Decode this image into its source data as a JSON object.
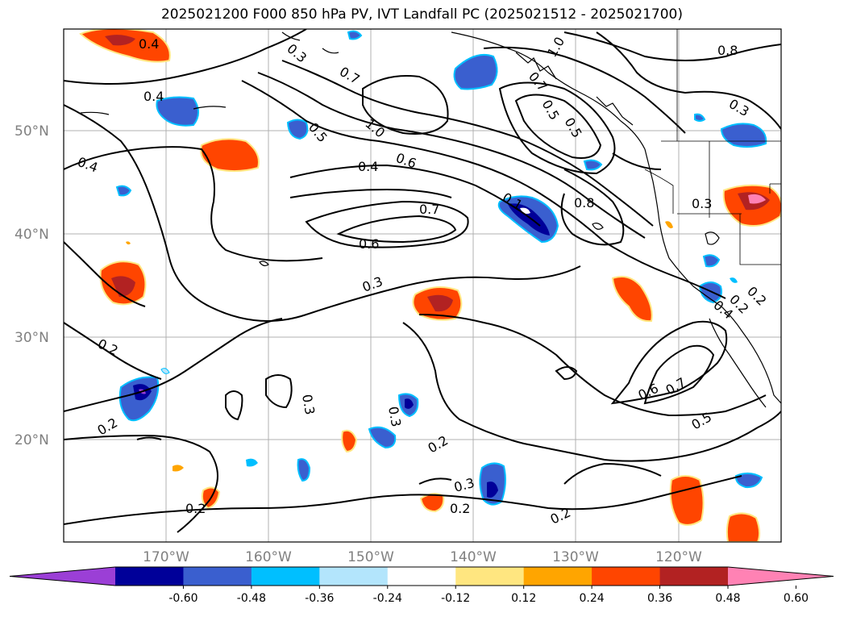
{
  "title": "2025021200 F000 850 hPa PV, IVT Landfall PC (2025021512 - 2025021700)",
  "lat_labels": [
    "50°N",
    "40°N",
    "30°N",
    "20°N"
  ],
  "lon_labels": [
    "170°W",
    "160°W",
    "150°W",
    "140°W",
    "130°W",
    "120°W"
  ],
  "colorbar": {
    "ticks": [
      "-0.60",
      "-0.48",
      "-0.36",
      "-0.24",
      "-0.12",
      "0.12",
      "0.24",
      "0.36",
      "0.48",
      "0.60"
    ],
    "colors": [
      "#9b3fd6",
      "#000099",
      "#3a5fcf",
      "#00bfff",
      "#b3e5fc",
      "#ffffff",
      "#ffe680",
      "#ffa500",
      "#ff4500",
      "#b22222",
      "#ff82b4",
      "#ff82b4"
    ]
  },
  "contour_labels": [
    "0.4",
    "0.4",
    "0.4",
    "0.5",
    "1.0",
    "0.6",
    "0.4",
    "0.7",
    "0.6",
    "0.3",
    "0.7",
    "1.0",
    "0.8",
    "0.5",
    "0.8",
    "0.3",
    "0.3",
    "0.2",
    "0.2",
    "0.2",
    "0.3",
    "0.3",
    "0.2",
    "0.3",
    "0.2",
    "0.2",
    "0.2",
    "0.6",
    "0.7",
    "0.5",
    "0.4",
    "0.2",
    "0.3",
    "0.7",
    "0.5",
    "0.1"
  ],
  "colors": {
    "frame": "#000000",
    "grid": "#b0b0b0",
    "contour": "#000000",
    "coast": "#000000"
  }
}
